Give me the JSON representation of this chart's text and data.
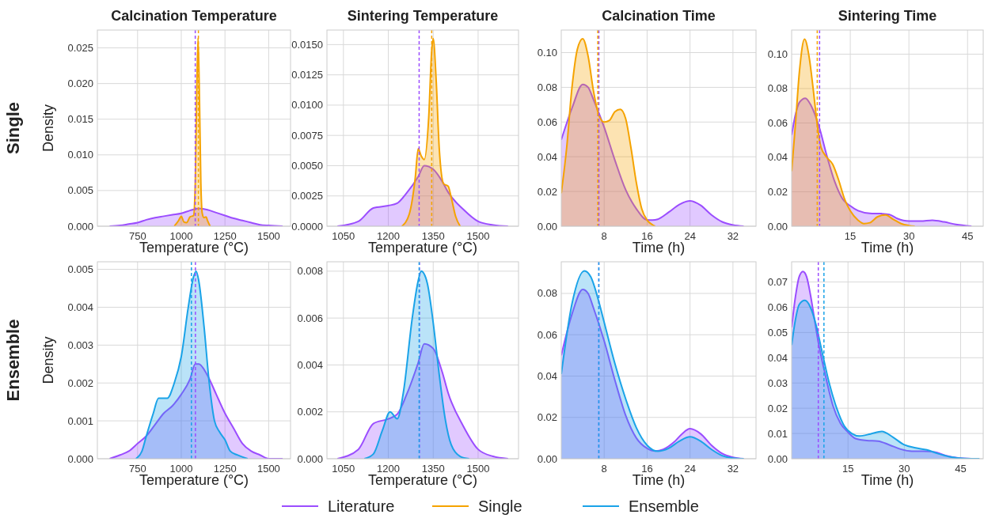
{
  "chart_data": [
    {
      "type": "area",
      "title": "Calcination Temperature",
      "xlabel": "Temperature (°C)",
      "ylabel": "Density",
      "annotations": [
        "Single"
      ],
      "grid": true,
      "legend": "bottom",
      "xlim": [
        520,
        1625
      ],
      "ylim": [
        0,
        0.0275
      ],
      "xticks": [
        750,
        1000,
        1250,
        1500
      ],
      "yticks": [
        {
          "value": 0,
          "label": "0.000"
        },
        {
          "value": 0.005,
          "label": "0.005"
        },
        {
          "value": 0.01,
          "label": "0.010"
        },
        {
          "value": 0.015,
          "label": "0.015"
        },
        {
          "value": 0.02,
          "label": "0.020"
        },
        {
          "value": 0.025,
          "label": "0.025"
        }
      ],
      "ref_lines": [
        {
          "axis": "x",
          "value": 1080,
          "color": "#9b4dff",
          "line_style": "dashed"
        },
        {
          "axis": "x",
          "value": 1098,
          "color": "#f5a300",
          "line_style": "dashed"
        }
      ],
      "series": [
        {
          "name": "Literature",
          "color": "#9b4dff",
          "x": [
            590,
            650,
            700,
            750,
            800,
            850,
            900,
            950,
            1000,
            1050,
            1100,
            1150,
            1200,
            1250,
            1300,
            1350,
            1400,
            1450,
            1500,
            1580
          ],
          "values": [
            0,
            0.0001,
            0.0003,
            0.0005,
            0.0009,
            0.0012,
            0.0014,
            0.0016,
            0.0018,
            0.0022,
            0.0025,
            0.0023,
            0.0019,
            0.0015,
            0.0011,
            0.0008,
            0.0005,
            0.0002,
            0.0001,
            0
          ]
        },
        {
          "name": "Single",
          "color": "#f5a300",
          "x": [
            960,
            985,
            1000,
            1015,
            1030,
            1050,
            1070,
            1080,
            1088,
            1096,
            1104,
            1112,
            1120,
            1130,
            1142,
            1150,
            1165
          ],
          "values": [
            0,
            0.0008,
            0.0014,
            0.0006,
            0.0005,
            0.0013,
            0.0015,
            0.006,
            0.018,
            0.0264,
            0.018,
            0.006,
            0.0018,
            0.0012,
            0.0013,
            0.0008,
            0
          ]
        }
      ]
    },
    {
      "type": "area",
      "title": "Sintering Temperature",
      "xlabel": "Temperature (°C)",
      "grid": true,
      "legend": "bottom",
      "xlim": [
        995,
        1635
      ],
      "ylim": [
        0,
        0.0162
      ],
      "xticks": [
        1050,
        1200,
        1350,
        1500
      ],
      "yticks": [
        {
          "value": 0,
          "label": "0.0000"
        },
        {
          "value": 0.0025,
          "label": "0.0025"
        },
        {
          "value": 0.005,
          "label": "0.0050"
        },
        {
          "value": 0.0075,
          "label": "0.0075"
        },
        {
          "value": 0.01,
          "label": "0.0100"
        },
        {
          "value": 0.0125,
          "label": "0.0125"
        },
        {
          "value": 0.015,
          "label": "0.0150"
        }
      ],
      "ref_lines": [
        {
          "axis": "x",
          "value": 1303,
          "color": "#9b4dff",
          "line_style": "dashed"
        },
        {
          "axis": "x",
          "value": 1345,
          "color": "#f5a300",
          "line_style": "dashed"
        }
      ],
      "series": [
        {
          "name": "Literature",
          "color": "#9b4dff",
          "x": [
            1030,
            1100,
            1150,
            1200,
            1230,
            1260,
            1300,
            1320,
            1350,
            1380,
            1400,
            1450,
            1500,
            1550,
            1600
          ],
          "values": [
            0,
            0.0004,
            0.0015,
            0.0017,
            0.0019,
            0.0027,
            0.0041,
            0.005,
            0.0047,
            0.0037,
            0.0028,
            0.0014,
            0.0004,
            0.0001,
            0
          ]
        },
        {
          "name": "Single",
          "color": "#f5a300",
          "x": [
            1245,
            1270,
            1290,
            1300,
            1310,
            1320,
            1335,
            1345,
            1350,
            1360,
            1370,
            1385,
            1400,
            1410,
            1425,
            1440
          ],
          "values": [
            0,
            0.001,
            0.004,
            0.0064,
            0.0058,
            0.0055,
            0.009,
            0.0145,
            0.0155,
            0.012,
            0.0065,
            0.0035,
            0.0033,
            0.0024,
            0.0008,
            0
          ]
        }
      ]
    },
    {
      "type": "area",
      "title": "Calcination Time",
      "xlabel": "Time (h)",
      "grid": true,
      "legend": "bottom",
      "xlim": [
        0,
        36.3
      ],
      "ylim": [
        0,
        0.113
      ],
      "xticks": [
        8,
        16,
        24,
        32
      ],
      "yticks": [
        {
          "value": 0,
          "label": "0.00"
        },
        {
          "value": 0.02,
          "label": "0.02"
        },
        {
          "value": 0.04,
          "label": "0.04"
        },
        {
          "value": 0.06,
          "label": "0.06"
        },
        {
          "value": 0.08,
          "label": "0.08"
        },
        {
          "value": 0.1,
          "label": "0.10"
        }
      ],
      "ref_lines": [
        {
          "axis": "x",
          "value": 7.0,
          "color": "#9b4dff",
          "line_style": "dashed"
        },
        {
          "axis": "x",
          "value": 6.8,
          "color": "#f5a300",
          "line_style": "dashed"
        }
      ],
      "series": [
        {
          "name": "Literature",
          "color": "#9b4dff",
          "x": [
            0,
            2,
            4,
            5,
            6,
            8,
            10,
            12,
            14,
            16,
            17,
            18,
            20,
            22,
            24,
            26,
            28,
            30,
            32,
            34
          ],
          "values": [
            0.0498,
            0.068,
            0.0817,
            0.08,
            0.073,
            0.057,
            0.038,
            0.021,
            0.01,
            0.0036,
            0.0035,
            0.004,
            0.008,
            0.0125,
            0.0146,
            0.012,
            0.0065,
            0.0025,
            0.0007,
            0
          ]
        },
        {
          "name": "Single",
          "color": "#f5a300",
          "x": [
            0,
            1,
            2,
            3,
            4,
            5,
            6,
            7,
            8,
            9,
            10,
            11,
            12,
            13,
            14,
            15,
            16,
            17,
            17.5
          ],
          "values": [
            0.019,
            0.045,
            0.08,
            0.102,
            0.108,
            0.098,
            0.078,
            0.064,
            0.06,
            0.061,
            0.066,
            0.0673,
            0.062,
            0.045,
            0.025,
            0.01,
            0.0035,
            0.0008,
            0
          ]
        }
      ]
    },
    {
      "type": "area",
      "title": "Sintering Time",
      "xlabel": "Time (h)",
      "grid": true,
      "legend": "bottom",
      "xlim": [
        0,
        49
      ],
      "ylim": [
        0,
        0.114
      ],
      "xticks": [
        15,
        30,
        45
      ],
      "yticks": [
        {
          "value": 0,
          "label": "0.00"
        },
        {
          "value": 0.02,
          "label": "0.02"
        },
        {
          "value": 0.04,
          "label": "0.04"
        },
        {
          "value": 0.06,
          "label": "0.06"
        },
        {
          "value": 0.08,
          "label": "0.08"
        },
        {
          "value": 0.1,
          "label": "0.10"
        }
      ],
      "ref_lines": [
        {
          "axis": "x",
          "value": 7.15,
          "color": "#9b4dff",
          "line_style": "dashed"
        },
        {
          "axis": "x",
          "value": 6.55,
          "color": "#f5a300",
          "line_style": "dashed"
        }
      ],
      "series": [
        {
          "name": "Literature",
          "color": "#9b4dff",
          "x": [
            0,
            1,
            2,
            3.5,
            5,
            7,
            9,
            11,
            13,
            15,
            17,
            20,
            23,
            25,
            27,
            30,
            33,
            36,
            39,
            42,
            46
          ],
          "values": [
            0.053,
            0.065,
            0.072,
            0.0744,
            0.07,
            0.058,
            0.041,
            0.026,
            0.016,
            0.0118,
            0.009,
            0.0075,
            0.0073,
            0.0068,
            0.0045,
            0.003,
            0.003,
            0.0035,
            0.0025,
            0.001,
            0
          ]
        },
        {
          "name": "Single",
          "color": "#f5a300",
          "x": [
            0,
            1,
            2,
            3.3,
            4.5,
            5.5,
            6.5,
            7.5,
            9,
            10.5,
            12,
            13.5,
            15,
            17,
            18.5,
            20,
            22,
            24,
            26,
            28,
            30,
            31.5
          ],
          "values": [
            0.032,
            0.06,
            0.09,
            0.1087,
            0.098,
            0.08,
            0.06,
            0.046,
            0.04,
            0.036,
            0.027,
            0.016,
            0.009,
            0.0035,
            0.0015,
            0.002,
            0.0055,
            0.0065,
            0.004,
            0.0015,
            0.0004,
            0
          ]
        }
      ]
    },
    {
      "type": "area",
      "xlabel": "Temperature (°C)",
      "ylabel": "Density",
      "annotations": [
        "Ensemble"
      ],
      "grid": true,
      "legend": "bottom",
      "xlim": [
        520,
        1625
      ],
      "ylim": [
        0,
        0.0052
      ],
      "xticks": [
        750,
        1000,
        1250,
        1500
      ],
      "yticks": [
        {
          "value": 0,
          "label": "0.000"
        },
        {
          "value": 0.001,
          "label": "0.001"
        },
        {
          "value": 0.002,
          "label": "0.002"
        },
        {
          "value": 0.003,
          "label": "0.003"
        },
        {
          "value": 0.004,
          "label": "0.004"
        },
        {
          "value": 0.005,
          "label": "0.005"
        }
      ],
      "ref_lines": [
        {
          "axis": "x",
          "value": 1081,
          "color": "#9b4dff",
          "line_style": "dashed"
        },
        {
          "axis": "x",
          "value": 1058,
          "color": "#1aa3e8",
          "line_style": "dashed"
        }
      ],
      "series": [
        {
          "name": "Literature",
          "color": "#9b4dff",
          "x": [
            590,
            650,
            700,
            750,
            800,
            850,
            900,
            950,
            1000,
            1050,
            1080,
            1100,
            1150,
            1200,
            1250,
            1300,
            1350,
            1400,
            1450,
            1500,
            1580
          ],
          "values": [
            0,
            0.0001,
            0.0002,
            0.0004,
            0.0006,
            0.0009,
            0.0012,
            0.0014,
            0.0017,
            0.0021,
            0.0025,
            0.0025,
            0.0022,
            0.0017,
            0.0012,
            0.0008,
            0.0004,
            0.0002,
            0.0001,
            0,
            0
          ]
        },
        {
          "name": "Ensemble",
          "color": "#1aa3e8",
          "x": [
            740,
            775,
            800,
            840,
            870,
            920,
            960,
            1000,
            1040,
            1070,
            1085,
            1100,
            1130,
            1160,
            1190,
            1220,
            1250,
            1280,
            1320,
            1380
          ],
          "values": [
            0,
            0.0002,
            0.0006,
            0.0012,
            0.0016,
            0.0016,
            0.002,
            0.0027,
            0.004,
            0.0048,
            0.00495,
            0.0047,
            0.0035,
            0.002,
            0.001,
            0.0007,
            0.0005,
            0.0002,
            0.0001,
            0
          ]
        }
      ]
    },
    {
      "type": "area",
      "xlabel": "Temperature (°C)",
      "grid": true,
      "legend": "bottom",
      "xlim": [
        995,
        1635
      ],
      "ylim": [
        0,
        0.0084
      ],
      "xticks": [
        1050,
        1200,
        1350,
        1500
      ],
      "yticks": [
        {
          "value": 0,
          "label": "0.000"
        },
        {
          "value": 0.002,
          "label": "0.002"
        },
        {
          "value": 0.004,
          "label": "0.004"
        },
        {
          "value": 0.006,
          "label": "0.006"
        },
        {
          "value": 0.008,
          "label": "0.008"
        }
      ],
      "ref_lines": [
        {
          "axis": "x",
          "value": 1304,
          "color": "#9b4dff",
          "line_style": "dashed"
        },
        {
          "axis": "x",
          "value": 1303,
          "color": "#1aa3e8",
          "line_style": "dashed"
        }
      ],
      "series": [
        {
          "name": "Literature",
          "color": "#9b4dff",
          "x": [
            1030,
            1100,
            1150,
            1200,
            1230,
            1260,
            1300,
            1320,
            1350,
            1380,
            1400,
            1450,
            1500,
            1550,
            1600
          ],
          "values": [
            0,
            0.0004,
            0.0015,
            0.0017,
            0.0019,
            0.0027,
            0.0041,
            0.0049,
            0.0047,
            0.0037,
            0.0028,
            0.0014,
            0.0004,
            0.0001,
            0
          ]
        },
        {
          "name": "Ensemble",
          "color": "#1aa3e8",
          "x": [
            1120,
            1150,
            1180,
            1206,
            1230,
            1250,
            1280,
            1300,
            1310,
            1330,
            1350,
            1370,
            1390,
            1410,
            1440,
            1470
          ],
          "values": [
            0,
            0.0002,
            0.0012,
            0.002,
            0.0017,
            0.0028,
            0.006,
            0.0076,
            0.008,
            0.0075,
            0.0058,
            0.0036,
            0.0017,
            0.0006,
            0.0001,
            0
          ]
        }
      ]
    },
    {
      "type": "area",
      "xlabel": "Time (h)",
      "grid": true,
      "legend": "bottom",
      "xlim": [
        0,
        36.3
      ],
      "ylim": [
        0,
        0.0953
      ],
      "xticks": [
        8,
        16,
        24,
        32
      ],
      "yticks": [
        {
          "value": 0,
          "label": "0.00"
        },
        {
          "value": 0.02,
          "label": "0.02"
        },
        {
          "value": 0.04,
          "label": "0.04"
        },
        {
          "value": 0.06,
          "label": "0.06"
        },
        {
          "value": 0.08,
          "label": "0.08"
        }
      ],
      "ref_lines": [
        {
          "axis": "x",
          "value": 7.0,
          "color": "#9b4dff",
          "line_style": "dashed"
        },
        {
          "axis": "x",
          "value": 7.0,
          "color": "#1aa3e8",
          "line_style": "dashed"
        }
      ],
      "series": [
        {
          "name": "Literature",
          "color": "#9b4dff",
          "x": [
            0,
            2,
            4,
            5,
            6,
            8,
            10,
            12,
            14,
            16,
            17.5,
            19,
            21,
            22.5,
            24,
            26,
            28,
            30,
            32,
            34
          ],
          "values": [
            0.05,
            0.07,
            0.0819,
            0.08,
            0.073,
            0.057,
            0.038,
            0.021,
            0.01,
            0.005,
            0.0037,
            0.0045,
            0.008,
            0.012,
            0.0145,
            0.012,
            0.0065,
            0.0025,
            0.0007,
            0
          ]
        },
        {
          "name": "Ensemble",
          "color": "#1aa3e8",
          "x": [
            0,
            2,
            4.3,
            5.5,
            7,
            8,
            10,
            12,
            14,
            16,
            18,
            20,
            22,
            24,
            26,
            28,
            30,
            32,
            34
          ],
          "values": [
            0.041,
            0.075,
            0.0909,
            0.088,
            0.076,
            0.066,
            0.046,
            0.029,
            0.015,
            0.0065,
            0.0036,
            0.005,
            0.0085,
            0.0106,
            0.0085,
            0.0045,
            0.0015,
            0.0003,
            0
          ]
        }
      ]
    },
    {
      "type": "area",
      "xlabel": "Time (h)",
      "grid": true,
      "legend": "bottom",
      "xlim": [
        0,
        51
      ],
      "ylim": [
        0,
        0.078
      ],
      "xticks": [
        15,
        30,
        45
      ],
      "yticks": [
        {
          "value": 0,
          "label": "0.00"
        },
        {
          "value": 0.01,
          "label": "0.01"
        },
        {
          "value": 0.02,
          "label": "0.02"
        },
        {
          "value": 0.03,
          "label": "0.03"
        },
        {
          "value": 0.04,
          "label": "0.04"
        },
        {
          "value": 0.05,
          "label": "0.05"
        },
        {
          "value": 0.06,
          "label": "0.06"
        },
        {
          "value": 0.07,
          "label": "0.07"
        }
      ],
      "ref_lines": [
        {
          "axis": "x",
          "value": 7.1,
          "color": "#9b4dff",
          "line_style": "dashed"
        },
        {
          "axis": "x",
          "value": 8.6,
          "color": "#1aa3e8",
          "line_style": "dashed"
        }
      ],
      "series": [
        {
          "name": "Literature",
          "color": "#9b4dff",
          "x": [
            0,
            1,
            2,
            3,
            4,
            5,
            6,
            7,
            9,
            11,
            13,
            15,
            17,
            20,
            23,
            26,
            29,
            32,
            35,
            38,
            41,
            44,
            48
          ],
          "values": [
            0.052,
            0.064,
            0.072,
            0.0742,
            0.072,
            0.065,
            0.056,
            0.047,
            0.033,
            0.021,
            0.014,
            0.0105,
            0.008,
            0.0072,
            0.007,
            0.0055,
            0.0038,
            0.003,
            0.003,
            0.0027,
            0.0013,
            0.0004,
            0
          ]
        },
        {
          "name": "Ensemble",
          "color": "#1aa3e8",
          "x": [
            0,
            1,
            2,
            3.5,
            5,
            6.5,
            8,
            10,
            12,
            14,
            16,
            18,
            21,
            24,
            27,
            30,
            33,
            36,
            39,
            42,
            46,
            50
          ],
          "values": [
            0.045,
            0.055,
            0.061,
            0.0627,
            0.06,
            0.053,
            0.043,
            0.03,
            0.02,
            0.013,
            0.01,
            0.009,
            0.0098,
            0.0108,
            0.0085,
            0.0055,
            0.0043,
            0.0035,
            0.002,
            0.0008,
            0.0001,
            0
          ]
        }
      ]
    }
  ]
}
